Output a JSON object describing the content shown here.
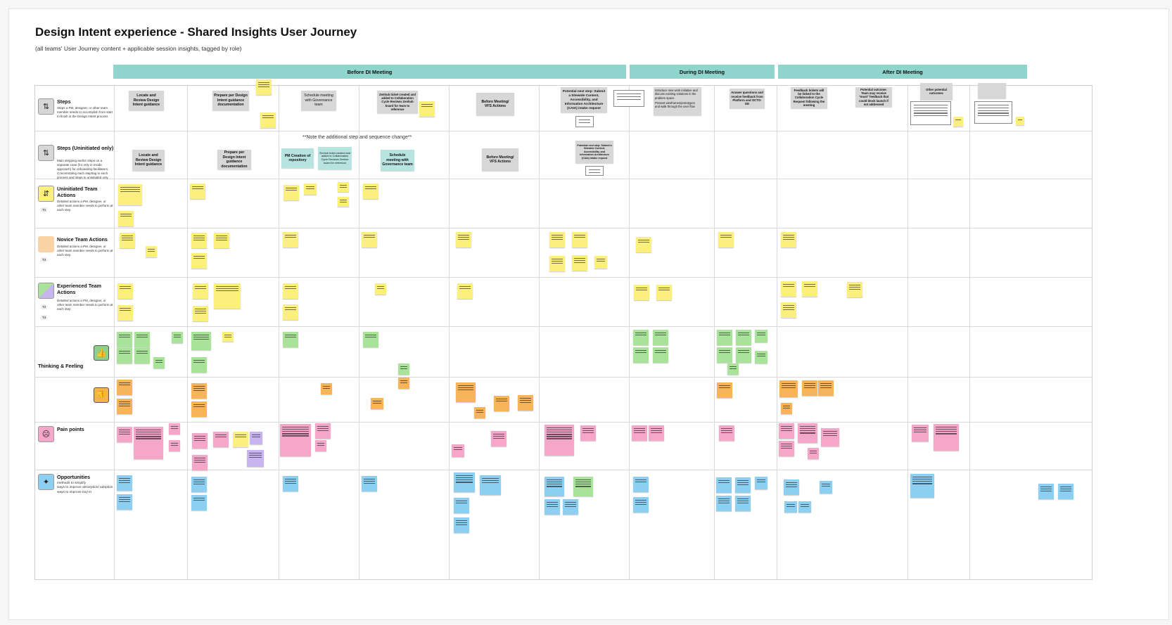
{
  "board": {
    "title": "Design Intent experience - Shared Insights User Journey",
    "subtitle": "(all teams' User Journey content + applicable session insights, tagged by role)"
  },
  "phases": [
    {
      "label": "Before DI Meeting"
    },
    {
      "label": "During DI Meeting"
    },
    {
      "label": "After DI Meeting"
    }
  ],
  "rows": {
    "steps": {
      "title": "Steps",
      "desc": "Steps a PM, designer, or other team member needs to accomplish from start to finish in the Design Intent process",
      "icon": "steps-icon"
    },
    "steps_uninitiated": {
      "title": "Steps (Uninitiated only)",
      "desc": "Main stepping and/or steps on a separate case (for only in Inside approach) for onboarding facilitators. Concentrating each step/tag to each process and steps to uninitiated only",
      "icon": "steps-icon"
    },
    "uninitiated_actions": {
      "title": "Uninitiated Team Actions",
      "desc": "Detailed actions a PM, designer, or other team member needs to perform at each step",
      "tag": "T1",
      "icon": "uninitiated-icon"
    },
    "novice_actions": {
      "title": "Novice Team Actions",
      "desc": "Detailed actions a PM, designer, or other team member needs to perform at each step",
      "tag": "T3",
      "icon": "novice-icon"
    },
    "experienced_actions": {
      "title": "Experienced Team Actions",
      "desc": "Detailed actions a PM, designer, or other team member needs to perform at each step",
      "tags": [
        "T2",
        "T4"
      ],
      "icon": "experienced-icon"
    },
    "thinking": {
      "title": "Thinking & Feeling"
    },
    "pain": {
      "title": "Pain points",
      "icon": "pain-icon"
    },
    "opportunities": {
      "title": "Opportunities",
      "bullets": [
        "methods to simplify",
        "ways to improve absorption/ adoption",
        "ways to improve buy-in"
      ],
      "icon": "lightbulb-icon"
    }
  },
  "steps": [
    "Locate and Review Design Intent guidance",
    "Prepare per Design Intent guidance documentation",
    "Schedule meeting with Governance team",
    "Zenhub ticket created and added to Collaboration Cycle Reviews Zenhub board for team to reference",
    "Before Meeting/ VFS Actions",
    "Potential next step: Submit a Sitewide Content, Accessibility, and Information Architecture (CAIA) intake request",
    "Answer questions and receive feedback from Platform and OCTO-DE",
    "Feedback tickets will be linked to the Collaboration Cycle Request following the meeting",
    "Potential outcome: Team may receive \"must\" feedback that could block launch if not addressed",
    "Other potential outcomes"
  ],
  "during_bullets": [
    "Introduce new work initiative and discuss existing solutions in the problem space",
    "Present wireframes/prototypes and walk through the user flow"
  ],
  "steps_uninitiated": [
    "Locate and Review Design Intent guidance",
    "Prepare per Design Intent guidance documentation",
    "PM Creation of repository",
    "Zenhub ticket created and added to Collaboration Cycle Reviews Zenhub board for reference",
    "Schedule meeting with Governance team",
    "Before Meeting/ VFS Actions",
    "Potential next step: Submit a Sitewide Content, Accessibility, and Information Architecture (CAIA) intake request"
  ],
  "sequence_note": "**Note the additional step and sequence change**",
  "colors": {
    "phase_bar": "#8fd5cd",
    "yellow": "#fbef7e",
    "green": "#a9e39a",
    "orange": "#f7b45a",
    "pink": "#f4a7c8",
    "blue": "#8ccff1",
    "purple": "#c8b5ef",
    "gray_card": "#d7d7d7"
  }
}
